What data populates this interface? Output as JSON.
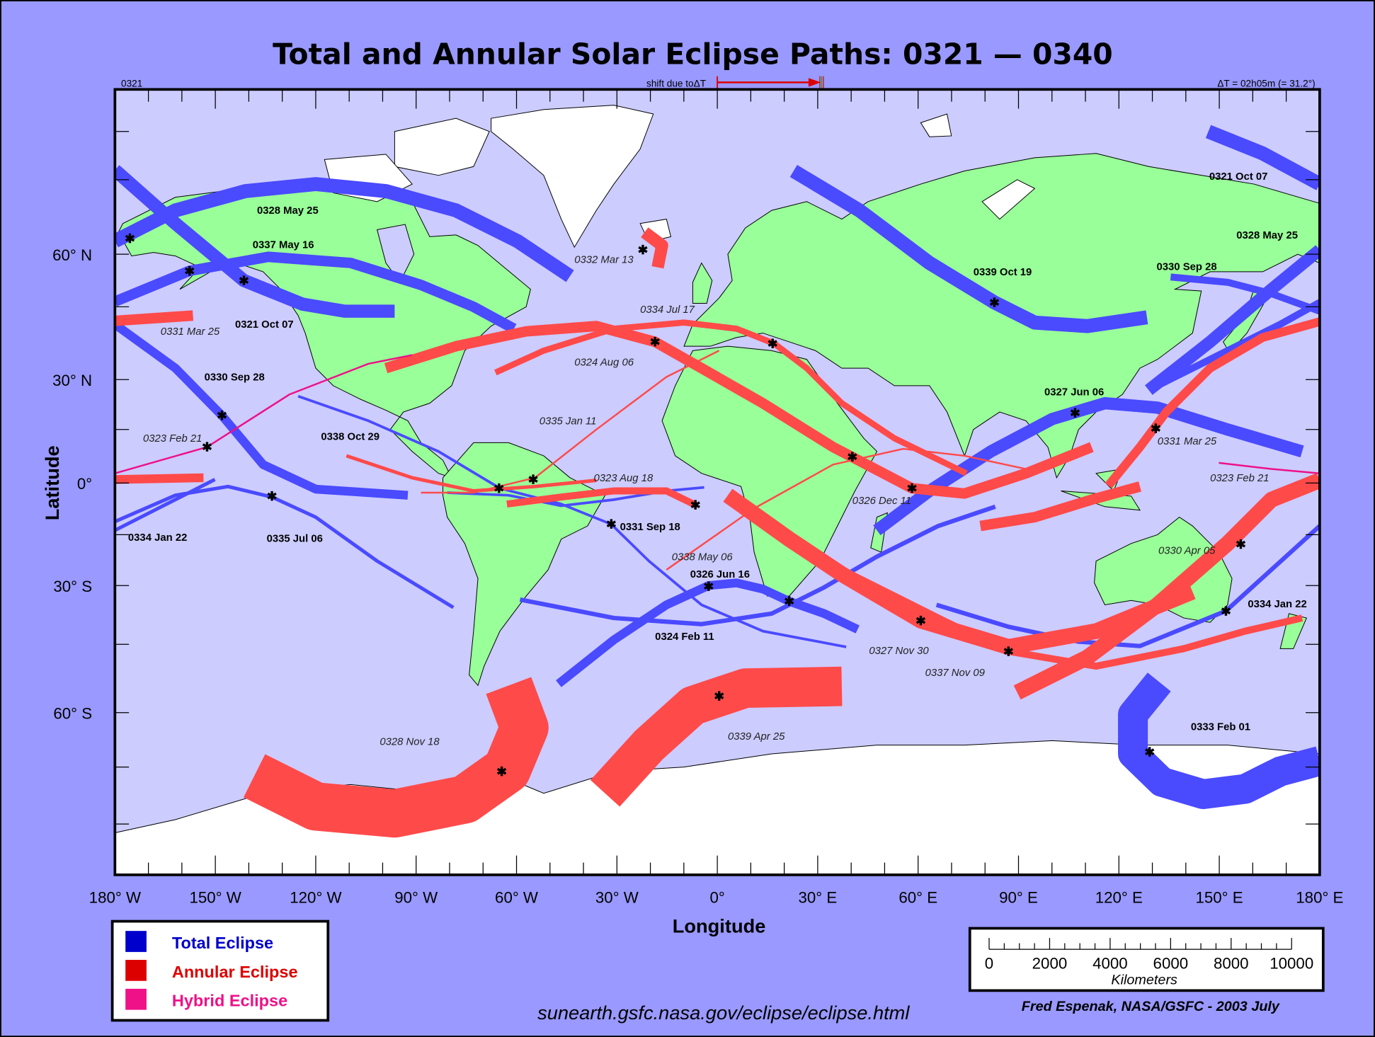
{
  "title": "Total and Annular Solar Eclipse Paths:  0321 — 0340",
  "header": {
    "start_year": "0321",
    "shift_label": "shift due toΔT",
    "delta_t": "ΔT = 02h05m   (= 31.2°)"
  },
  "axes": {
    "x_title": "Longitude",
    "y_title": "Latitude",
    "x_ticks": [
      "180° W",
      "150° W",
      "120° W",
      "90° W",
      "60° W",
      "30° W",
      "0°",
      "30° E",
      "60° E",
      "90° E",
      "120° E",
      "150° E",
      "180° E"
    ],
    "y_ticks": [
      "60° N",
      "30° N",
      "0°",
      "30° S",
      "60° S"
    ]
  },
  "colors": {
    "background": "#9999ff",
    "ocean": "#ccccff",
    "land": "#99ff99",
    "ice": "#ffffff",
    "total": "#4a4aff",
    "annular": "#ff4a4a",
    "hybrid": "#ee1188"
  },
  "eclipse_labels": [
    {
      "text": "0328 May 25",
      "type": "total"
    },
    {
      "text": "0337 May 16",
      "type": "total"
    },
    {
      "text": "0321 Oct 07",
      "type": "total"
    },
    {
      "text": "0330 Sep 28",
      "type": "total"
    },
    {
      "text": "0338 Oct 29",
      "type": "total"
    },
    {
      "text": "0334 Jan 22",
      "type": "total"
    },
    {
      "text": "0335 Jul 06",
      "type": "total"
    },
    {
      "text": "0331 Sep 18",
      "type": "total"
    },
    {
      "text": "0326 Jun 16",
      "type": "total"
    },
    {
      "text": "0324 Feb 11",
      "type": "total"
    },
    {
      "text": "0339 Oct 19",
      "type": "total"
    },
    {
      "text": "0327 Jun 06",
      "type": "total"
    },
    {
      "text": "0321 Oct 07",
      "type": "total"
    },
    {
      "text": "0328 May 25",
      "type": "total"
    },
    {
      "text": "0330 Sep 28",
      "type": "total"
    },
    {
      "text": "0334 Jan 22",
      "type": "total"
    },
    {
      "text": "0333 Feb 01",
      "type": "total"
    },
    {
      "text": "0331 Mar 25",
      "type": "annular"
    },
    {
      "text": "0323 Feb 21",
      "type": "annular"
    },
    {
      "text": "0332 Mar 13",
      "type": "annular"
    },
    {
      "text": "0334 Jul 17",
      "type": "annular"
    },
    {
      "text": "0324 Aug 06",
      "type": "annular"
    },
    {
      "text": "0335 Jan 11",
      "type": "annular"
    },
    {
      "text": "0323 Aug 18",
      "type": "annular"
    },
    {
      "text": "0338 May 06",
      "type": "annular"
    },
    {
      "text": "0326 Dec 11",
      "type": "annular"
    },
    {
      "text": "0327 Nov 30",
      "type": "annular"
    },
    {
      "text": "0337 Nov 09",
      "type": "annular"
    },
    {
      "text": "0328 Nov 18",
      "type": "annular"
    },
    {
      "text": "0339 Apr 25",
      "type": "annular"
    },
    {
      "text": "0331 Mar 25",
      "type": "annular"
    },
    {
      "text": "0323 Feb 21",
      "type": "annular"
    },
    {
      "text": "0330 Apr 05",
      "type": "annular"
    }
  ],
  "legend": [
    {
      "label": "Total Eclipse",
      "color": "#0000cc"
    },
    {
      "label": "Annular Eclipse",
      "color": "#dd0000"
    },
    {
      "label": "Hybrid Eclipse",
      "color": "#ee1188"
    }
  ],
  "scale_bar": {
    "ticks": [
      "0",
      "2000",
      "4000",
      "6000",
      "8000",
      "10000"
    ],
    "unit": "Kilometers"
  },
  "url": "sunearth.gsfc.nasa.gov/eclipse/eclipse.html",
  "credit": "Fred Espenak, NASA/GSFC - 2003 July"
}
